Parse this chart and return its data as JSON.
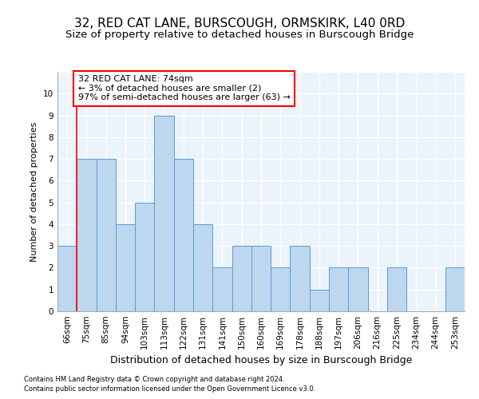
{
  "title": "32, RED CAT LANE, BURSCOUGH, ORMSKIRK, L40 0RD",
  "subtitle": "Size of property relative to detached houses in Burscough Bridge",
  "xlabel": "Distribution of detached houses by size in Burscough Bridge",
  "ylabel": "Number of detached properties",
  "categories": [
    "66sqm",
    "75sqm",
    "85sqm",
    "94sqm",
    "103sqm",
    "113sqm",
    "122sqm",
    "131sqm",
    "141sqm",
    "150sqm",
    "160sqm",
    "169sqm",
    "178sqm",
    "188sqm",
    "197sqm",
    "206sqm",
    "216sqm",
    "225sqm",
    "234sqm",
    "244sqm",
    "253sqm"
  ],
  "values": [
    3,
    7,
    7,
    4,
    5,
    9,
    7,
    4,
    2,
    3,
    3,
    2,
    3,
    1,
    2,
    2,
    0,
    2,
    0,
    0,
    2
  ],
  "bar_color": "#BDD7EE",
  "bar_edge_color": "#5B9BD5",
  "annotation_title": "32 RED CAT LANE: 74sqm",
  "annotation_line1": "← 3% of detached houses are smaller (2)",
  "annotation_line2": "97% of semi-detached houses are larger (63) →",
  "ylim": [
    0,
    11
  ],
  "footnote1": "Contains HM Land Registry data © Crown copyright and database right 2024.",
  "footnote2": "Contains public sector information licensed under the Open Government Licence v3.0.",
  "background_color": "#EBF3FB",
  "grid_color": "#FFFFFF",
  "title_fontsize": 11,
  "subtitle_fontsize": 9.5,
  "xlabel_fontsize": 9,
  "ylabel_fontsize": 8,
  "tick_fontsize": 7.5,
  "annot_fontsize": 8,
  "footnote_fontsize": 6
}
